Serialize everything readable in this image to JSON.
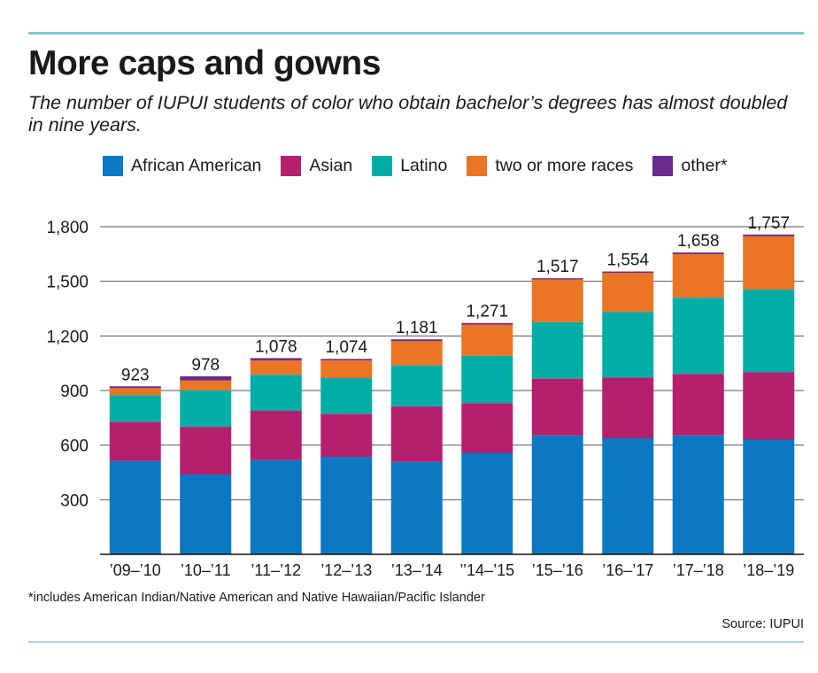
{
  "header": {
    "title": "More caps and gowns",
    "subtitle": "The number of IUPUI students of color who obtain bachelor’s degrees has almost doubled in nine years."
  },
  "footer": {
    "footnote": "*includes American Indian/Native American and Native Hawaiian/Pacific Islander",
    "source": "Source: IUPUI"
  },
  "colors": {
    "african_american": "#0a78c2",
    "asian": "#b5206e",
    "latino": "#00ada4",
    "two_or_more": "#ea7525",
    "other": "#6a2c90"
  },
  "chart_data": {
    "type": "bar",
    "stacked": true,
    "title": "More caps and gowns",
    "categories": [
      "’09–’10",
      "’10–’11",
      "’11–’12",
      "’12–’13",
      "’13–’14",
      "’’14–’15",
      "’15–’16",
      "’16–’17",
      "’17–’18",
      "’18–’19"
    ],
    "series": [
      {
        "name": "African American",
        "color": "#0a78c2",
        "values": [
          512,
          438,
          517,
          535,
          507,
          557,
          653,
          637,
          653,
          630
        ]
      },
      {
        "name": "Asian",
        "color": "#b5206e",
        "values": [
          216,
          262,
          271,
          237,
          306,
          273,
          312,
          334,
          338,
          370
        ]
      },
      {
        "name": "Latino",
        "color": "#00ada4",
        "values": [
          145,
          200,
          198,
          196,
          225,
          260,
          310,
          360,
          418,
          455
        ]
      },
      {
        "name": "two or more races",
        "color": "#ea7525",
        "values": [
          40,
          55,
          79,
          98,
          133,
          171,
          235,
          215,
          240,
          292
        ]
      },
      {
        "name": "other*",
        "color": "#6a2c90",
        "values": [
          10,
          23,
          13,
          8,
          10,
          10,
          7,
          8,
          9,
          10
        ]
      }
    ],
    "totals": [
      923,
      978,
      1078,
      1074,
      1181,
      1271,
      1517,
      1554,
      1658,
      1757
    ],
    "total_labels": [
      "923",
      "978",
      "1,078",
      "1,074",
      "1,181",
      "1,271",
      "1,517",
      "1,554",
      "1,658",
      "1,757"
    ],
    "yticks": [
      300,
      600,
      900,
      1200,
      1500,
      1800
    ],
    "ytick_labels": [
      "300",
      "600",
      "900",
      "1,200",
      "1,500",
      "1,800"
    ],
    "ylim": [
      0,
      1800
    ],
    "grid": true,
    "legend_position": "top"
  }
}
